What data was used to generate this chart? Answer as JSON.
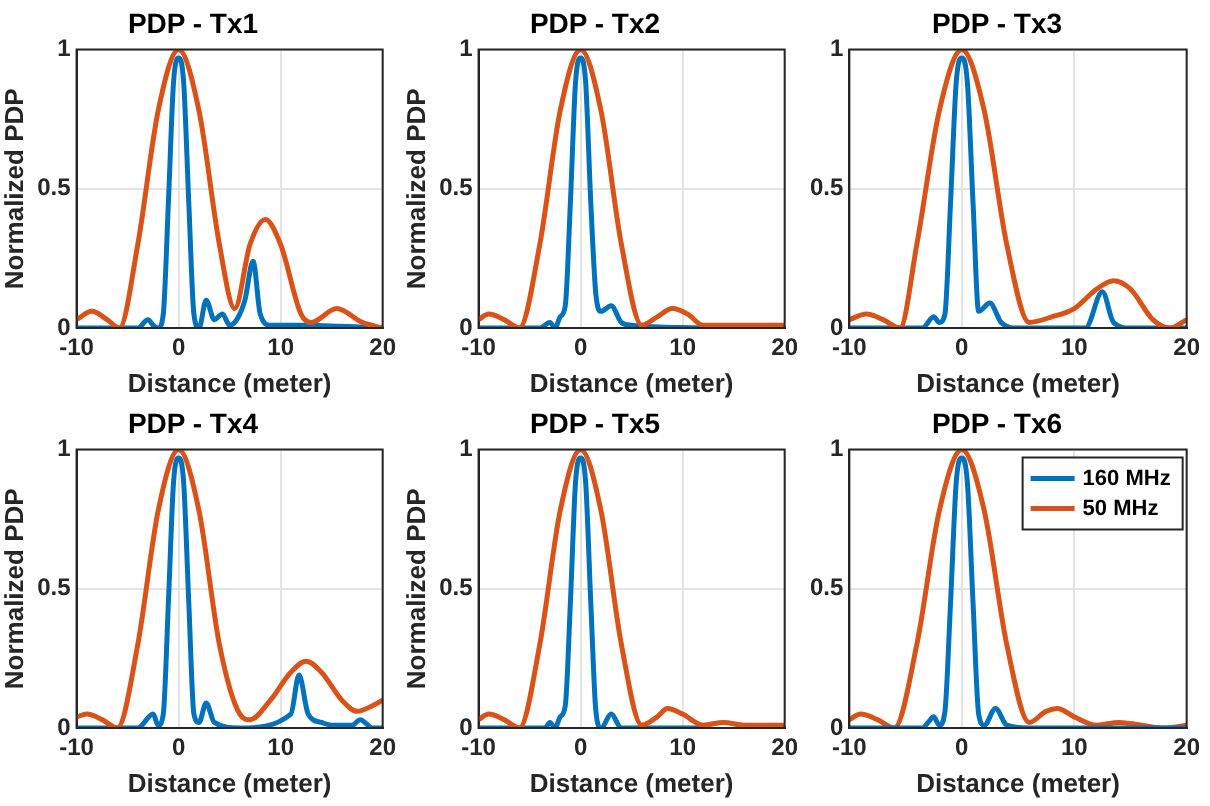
{
  "chart_data": [
    {
      "type": "line",
      "title": "PDP - Tx1",
      "xlabel": "Distance (meter)",
      "ylabel": "Normalized PDP",
      "xlim": [
        -10,
        20
      ],
      "xticks": [
        -10,
        0,
        10,
        20
      ],
      "ylim": [
        0,
        1
      ],
      "yticks": [
        0,
        0.5,
        1
      ],
      "grid": true,
      "legend": false,
      "series": [
        {
          "color": "#d95319",
          "x": [
            -10,
            -8.5,
            -7,
            -5.8,
            -4,
            -2,
            0,
            2,
            4,
            5.5,
            7,
            8.5,
            10,
            12,
            13,
            15.5,
            18,
            20
          ],
          "values": [
            0.03,
            0.06,
            0.03,
            0,
            0.3,
            0.78,
            1,
            0.78,
            0.3,
            0.07,
            0.3,
            0.39,
            0.3,
            0.05,
            0.02,
            0.07,
            0.02,
            0
          ]
        },
        {
          "color": "#0072bd",
          "x": [
            -10,
            -4,
            -3,
            -2.5,
            -2,
            -1.5,
            -1,
            -0.5,
            0,
            0.5,
            1,
            1.5,
            2,
            2.7,
            3.5,
            4.3,
            5,
            5.7,
            6.5,
            7.3,
            8,
            9,
            12,
            20
          ],
          "values": [
            0,
            0,
            0.03,
            0.01,
            0,
            0.05,
            0.45,
            0.88,
            0.97,
            0.88,
            0.45,
            0.05,
            0,
            0.1,
            0.03,
            0.05,
            0.01,
            0.03,
            0.1,
            0.24,
            0.05,
            0.01,
            0.01,
            0
          ]
        }
      ]
    },
    {
      "type": "line",
      "title": "PDP - Tx2",
      "xlabel": "Distance (meter)",
      "ylabel": "Normalized PDP",
      "xlim": [
        -10,
        20
      ],
      "xticks": [
        -10,
        0,
        10,
        20
      ],
      "ylim": [
        0,
        1
      ],
      "yticks": [
        0,
        0.5,
        1
      ],
      "grid": true,
      "legend": false,
      "series": [
        {
          "color": "#d95319",
          "x": [
            -10,
            -9,
            -7.5,
            -6,
            -4,
            -2,
            0,
            2,
            4,
            6,
            7.5,
            9,
            10.5,
            12,
            14,
            20
          ],
          "values": [
            0.03,
            0.05,
            0.03,
            0,
            0.3,
            0.78,
            1,
            0.78,
            0.3,
            0.01,
            0.04,
            0.07,
            0.05,
            0.01,
            0.01,
            0.01
          ]
        },
        {
          "color": "#0072bd",
          "x": [
            -10,
            -4,
            -3,
            -2.5,
            -2,
            -1.5,
            -1,
            -0.5,
            0,
            0.5,
            1,
            1.5,
            2,
            3,
            4,
            5,
            12
          ],
          "values": [
            0,
            0,
            0.02,
            0,
            0.04,
            0.08,
            0.45,
            0.88,
            0.97,
            0.88,
            0.45,
            0.12,
            0.06,
            0.08,
            0.02,
            0.01,
            0
          ]
        }
      ]
    },
    {
      "type": "line",
      "title": "PDP - Tx3",
      "xlabel": "Distance (meter)",
      "xlim": [
        -10,
        20
      ],
      "xticks": [
        -10,
        0,
        10,
        20
      ],
      "ylim": [
        0,
        1
      ],
      "yticks": [
        0,
        0.5,
        1
      ],
      "grid": true,
      "legend": false,
      "series": [
        {
          "color": "#d95319",
          "x": [
            -10,
            -8.5,
            -7,
            -5.5,
            -4,
            -2,
            0,
            2,
            4,
            6,
            8,
            10,
            12,
            13.5,
            15,
            17,
            18.5,
            20
          ],
          "values": [
            0.03,
            0.05,
            0.03,
            0,
            0.3,
            0.78,
            1,
            0.78,
            0.3,
            0.02,
            0.04,
            0.07,
            0.14,
            0.17,
            0.14,
            0.03,
            0,
            0.03
          ]
        },
        {
          "color": "#0072bd",
          "x": [
            -10,
            -3.5,
            -2.5,
            -2,
            -1.5,
            -1,
            -0.5,
            0,
            0.5,
            1,
            1.5,
            2.5,
            3.5,
            5,
            11,
            12.5,
            13.5,
            15,
            20
          ],
          "values": [
            0,
            0,
            0.04,
            0.02,
            0.05,
            0.45,
            0.88,
            0.97,
            0.88,
            0.45,
            0.06,
            0.09,
            0.02,
            0,
            0,
            0.13,
            0.02,
            0,
            0
          ]
        }
      ]
    },
    {
      "type": "line",
      "title": "PDP - Tx4",
      "xlabel": "Distance (meter)",
      "ylabel": "Normalized PDP",
      "xlim": [
        -10,
        20
      ],
      "xticks": [
        -10,
        0,
        10,
        20
      ],
      "ylim": [
        0,
        1
      ],
      "yticks": [
        0,
        0.5,
        1
      ],
      "grid": true,
      "legend": false,
      "series": [
        {
          "color": "#d95319",
          "x": [
            -10,
            -9,
            -7.5,
            -6,
            -4,
            -2,
            0,
            2,
            4,
            6,
            7,
            9,
            11,
            12.5,
            14,
            16,
            17.5,
            19,
            20
          ],
          "values": [
            0.04,
            0.05,
            0.03,
            0,
            0.3,
            0.78,
            1,
            0.78,
            0.3,
            0.05,
            0.03,
            0.1,
            0.2,
            0.24,
            0.2,
            0.1,
            0.06,
            0.08,
            0.1
          ]
        },
        {
          "color": "#0072bd",
          "x": [
            -10,
            -4,
            -2.5,
            -2,
            -1.5,
            -1,
            -0.5,
            0,
            0.5,
            1,
            1.5,
            2,
            2.7,
            3.5,
            6,
            11,
            11.8,
            12.7,
            14,
            15,
            17,
            17.8,
            19,
            20
          ],
          "values": [
            0,
            0,
            0.05,
            0.01,
            0.05,
            0.45,
            0.88,
            0.97,
            0.88,
            0.45,
            0.05,
            0.02,
            0.09,
            0.02,
            0,
            0.05,
            0.19,
            0.05,
            0.02,
            0.01,
            0.01,
            0.03,
            0,
            0
          ]
        }
      ]
    },
    {
      "type": "line",
      "title": "PDP - Tx5",
      "xlabel": "Distance (meter)",
      "ylabel": "Normalized PDP",
      "xlim": [
        -10,
        20
      ],
      "xticks": [
        -10,
        0,
        10,
        20
      ],
      "ylim": [
        0,
        1
      ],
      "yticks": [
        0,
        0.5,
        1
      ],
      "grid": true,
      "legend": false,
      "series": [
        {
          "color": "#d95319",
          "x": [
            -10,
            -9,
            -7.5,
            -6,
            -4,
            -2,
            0,
            2,
            4,
            6,
            7.5,
            8.5,
            10,
            12,
            14,
            16,
            18,
            20
          ],
          "values": [
            0.03,
            0.05,
            0.03,
            0,
            0.3,
            0.78,
            1,
            0.78,
            0.3,
            0.01,
            0.04,
            0.07,
            0.05,
            0.01,
            0.02,
            0.01,
            0.01,
            0.01
          ]
        },
        {
          "color": "#0072bd",
          "x": [
            -10,
            -3.5,
            -3,
            -2.5,
            -2,
            -1.5,
            -1,
            -0.5,
            0,
            0.5,
            1,
            1.5,
            2,
            3,
            4,
            12
          ],
          "values": [
            0,
            0,
            0.02,
            0,
            0.04,
            0.08,
            0.45,
            0.88,
            0.97,
            0.88,
            0.45,
            0.06,
            0,
            0.05,
            0,
            0
          ]
        }
      ]
    },
    {
      "type": "line",
      "title": "PDP - Tx6",
      "xlabel": "Distance (meter)",
      "xlim": [
        -10,
        20
      ],
      "xticks": [
        -10,
        0,
        10,
        20
      ],
      "ylim": [
        0,
        1
      ],
      "yticks": [
        0,
        0.5,
        1
      ],
      "grid": true,
      "legend": "top right",
      "series": [
        {
          "name": "160 MHz",
          "color": "#0072bd",
          "x": [
            -10,
            -3.5,
            -3,
            -2.5,
            -2,
            -1.5,
            -1,
            -0.5,
            0,
            0.5,
            1,
            1.5,
            2,
            3,
            4,
            6,
            20
          ],
          "values": [
            0,
            0,
            0.02,
            0.04,
            0.01,
            0.06,
            0.45,
            0.88,
            0.97,
            0.88,
            0.45,
            0.05,
            0.01,
            0.07,
            0.01,
            0,
            0
          ]
        },
        {
          "name": "50 MHz",
          "color": "#d95319",
          "x": [
            -10,
            -9,
            -7.5,
            -6,
            -4,
            -2,
            0,
            2,
            4,
            6,
            7.5,
            8.5,
            10,
            12,
            14,
            16,
            18,
            20
          ],
          "values": [
            0.03,
            0.05,
            0.03,
            0,
            0.3,
            0.78,
            1,
            0.78,
            0.3,
            0.02,
            0.06,
            0.07,
            0.04,
            0.01,
            0.02,
            0.01,
            0,
            0.01
          ]
        }
      ]
    }
  ]
}
